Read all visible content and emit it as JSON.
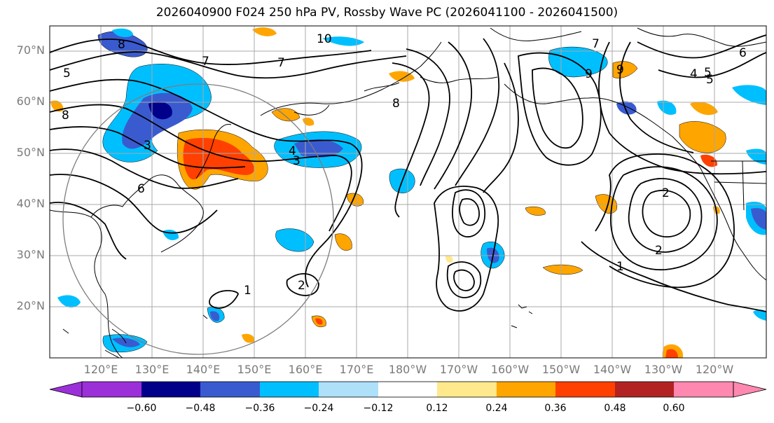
{
  "title": "2026040900 F024 250 hPa PV, Rossby Wave PC (2026041100 - 2026041500)",
  "latitude_labels": [
    "70°N",
    "60°N",
    "50°N",
    "40°N",
    "30°N",
    "20°N"
  ],
  "longitude_labels": [
    "120°E",
    "130°E",
    "140°E",
    "150°E",
    "160°E",
    "170°E",
    "180°W",
    "170°W",
    "160°W",
    "150°W",
    "140°W",
    "130°W",
    "120°W"
  ],
  "contour_labels": [
    "10",
    "8",
    "7",
    "5",
    "8",
    "7",
    "6",
    "9",
    "9",
    "8",
    "7",
    "6",
    "5",
    "4",
    "3",
    "3",
    "4",
    "5",
    "2",
    "1",
    "2",
    "2",
    "1"
  ],
  "colorbar": {
    "ticks": [
      "−0.60",
      "−0.48",
      "−0.36",
      "−0.24",
      "−0.12",
      "0.12",
      "0.24",
      "0.36",
      "0.48",
      "0.60"
    ],
    "colors": [
      "#9b30d9",
      "#00008b",
      "#3a5bd0",
      "#00bfff",
      "#aee0fa",
      "#ffffff",
      "#ffe98c",
      "#ffa500",
      "#ff4000",
      "#b22222",
      "#ff88b0"
    ]
  }
}
